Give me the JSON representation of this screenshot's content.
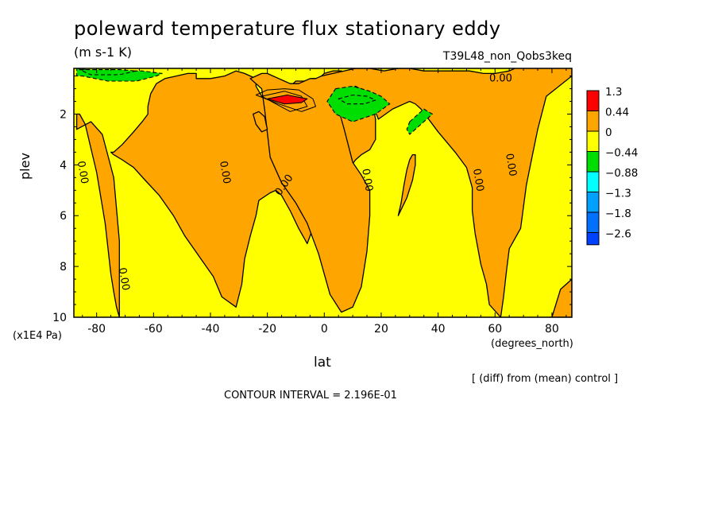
{
  "chart_data": {
    "type": "heatmap",
    "title": "poleward temperature flux stationary eddy",
    "units": "(m s-1 K)",
    "experiment": "T39L48_non_Qobs3keq",
    "xlabel": "lat",
    "ylabel": "plev",
    "x_unit": "(degrees_north)",
    "y_unit": "(x1E4 Pa)",
    "xlim": [
      -88,
      87
    ],
    "ylim": [
      10,
      0.2
    ],
    "xticks": [
      -80,
      -60,
      -40,
      -20,
      0,
      20,
      40,
      60,
      80
    ],
    "yticks": [
      2,
      4,
      6,
      8,
      10
    ],
    "levels": [
      "1.3",
      "0.44",
      "0",
      "−0.44",
      "−0.88",
      "−1.3",
      "−1.8",
      "−2.6"
    ],
    "level_colors": [
      "#ff0000",
      "#ffa500",
      "#ffff00",
      "#00dd00",
      "#00ffff",
      "#00a0ff",
      "#0070ff",
      "#0040ff"
    ],
    "contour_labels": [
      "0.00",
      "0.00",
      "0.00",
      "0.00",
      "0.00",
      "0.00",
      "0.00",
      "0.00"
    ],
    "regions": [
      {
        "sign": "positive",
        "x": [
          -86,
          -84,
          -80,
          -77,
          -75,
          -74,
          -73,
          -72,
          -72,
          -74,
          -78,
          -82,
          -87,
          -87
        ],
        "y": [
          2.0,
          2.4,
          4.3,
          6.3,
          8.3,
          9.0,
          9.6,
          10.0,
          7.0,
          4.5,
          2.8,
          2.3,
          2.6,
          2.0
        ]
      },
      {
        "sign": "positive",
        "x": [
          -74,
          -71,
          -67,
          -64,
          -62,
          -62,
          -61,
          -59,
          -56,
          -52,
          -48,
          -45,
          -45,
          -40,
          -35,
          -31,
          -28,
          -26,
          -24,
          -24,
          -22,
          -16,
          -11,
          -10,
          -7,
          -4,
          -2,
          0,
          3,
          6,
          9,
          11,
          13,
          15,
          17,
          18,
          18,
          16,
          13,
          11,
          9,
          6,
          3,
          0,
          -3,
          -6,
          -9,
          -12,
          -15,
          -17,
          -19,
          -23,
          -24,
          -26,
          -28,
          -29,
          -31,
          -36,
          -39,
          -44,
          -49,
          -53,
          -58,
          -63,
          -67,
          -71,
          -74,
          -75
        ],
        "y": [
          3.5,
          3.2,
          2.7,
          2.3,
          2.0,
          1.7,
          1.2,
          0.8,
          0.6,
          0.5,
          0.4,
          0.4,
          0.6,
          0.6,
          0.5,
          0.3,
          0.4,
          0.5,
          0.6,
          0.9,
          1.3,
          1.0,
          0.8,
          0.7,
          0.7,
          0.6,
          0.6,
          0.4,
          0.3,
          0.3,
          0.4,
          0.5,
          0.7,
          1.1,
          1.6,
          2.2,
          3.0,
          3.4,
          3.6,
          3.8,
          4.1,
          4.4,
          4.7,
          5.2,
          6.2,
          7.1,
          6.5,
          5.8,
          5.2,
          5.0,
          5.1,
          5.4,
          6.0,
          6.8,
          7.7,
          8.7,
          9.6,
          9.2,
          8.4,
          7.6,
          6.8,
          6.0,
          5.2,
          4.6,
          4.1,
          3.8,
          3.6,
          3.5
        ]
      },
      {
        "sign": "positive",
        "x": [
          -26,
          -22,
          -21,
          -19,
          -15,
          -10,
          -6,
          -2,
          2,
          6,
          10,
          13,
          15,
          16,
          16,
          13,
          10,
          7,
          5,
          7,
          11,
          14,
          17,
          19,
          24,
          28,
          30,
          32,
          34,
          36,
          40,
          46,
          50,
          52,
          52,
          53,
          55,
          57,
          58,
          62,
          63,
          64,
          65,
          69,
          71,
          73,
          75,
          78,
          87,
          87,
          69,
          65,
          60,
          56,
          51,
          47,
          44,
          43,
          42,
          41,
          35,
          30,
          26,
          21,
          16,
          11,
          7,
          3,
          -1,
          -3,
          -5,
          -7,
          -9,
          -12,
          -14,
          -16,
          -18,
          -20,
          -22,
          -24
        ],
        "y": [
          0.6,
          1.0,
          1.8,
          3.7,
          4.7,
          5.5,
          6.3,
          7.5,
          9.1,
          9.8,
          9.6,
          8.8,
          7.4,
          6.0,
          5.0,
          4.4,
          3.9,
          2.6,
          1.8,
          1.2,
          0.9,
          1.1,
          1.6,
          2.2,
          1.8,
          1.6,
          1.5,
          1.6,
          1.8,
          2.1,
          2.7,
          3.5,
          4.1,
          4.9,
          5.8,
          6.7,
          7.9,
          8.7,
          9.5,
          10.0,
          9.2,
          8.2,
          7.3,
          6.5,
          4.8,
          3.7,
          2.6,
          1.3,
          0.5,
          0.1,
          0.1,
          0.3,
          0.4,
          0.4,
          0.3,
          0.3,
          0.3,
          0.3,
          0.3,
          0.3,
          0.3,
          0.2,
          0.2,
          0.3,
          0.2,
          0.2,
          0.3,
          0.4,
          0.5,
          0.6,
          0.6,
          0.7,
          0.8,
          0.8,
          0.7,
          0.6,
          0.5,
          0.4,
          0.4,
          0.5
        ]
      },
      {
        "sign": "positive",
        "x": [
          26,
          29,
          31,
          32,
          32,
          31,
          30,
          29,
          28,
          27,
          26
        ],
        "y": [
          6.0,
          5.3,
          4.6,
          4.0,
          3.6,
          3.6,
          3.8,
          4.2,
          4.8,
          5.5,
          6.0
        ]
      },
      {
        "sign": "positive",
        "x": [
          -25,
          -23,
          -21,
          -20,
          -22,
          -24,
          -25
        ],
        "y": [
          2.0,
          1.9,
          2.1,
          2.6,
          2.7,
          2.4,
          2.0
        ]
      },
      {
        "sign": "positive",
        "x": [
          80,
          83,
          87,
          87,
          84,
          81,
          79,
          80
        ],
        "y": [
          10.0,
          8.9,
          8.5,
          10.0,
          10.0,
          10.0,
          10.0,
          10.0
        ]
      },
      {
        "sign": "positive",
        "x": [
          -22,
          -14,
          -8,
          -6,
          -12,
          -22
        ],
        "y": [
          1.3,
          1.1,
          1.3,
          1.7,
          1.9,
          1.3
        ]
      },
      {
        "sign": "positive",
        "x": [
          -24,
          -20,
          -14,
          -9,
          -4,
          -3,
          -8,
          -16,
          -24
        ],
        "y": [
          1.25,
          1.05,
          1.0,
          1.05,
          1.4,
          1.7,
          1.9,
          1.6,
          1.25
        ]
      },
      {
        "sign": "negative",
        "x": [
          -87,
          -80,
          -72,
          -64,
          -57,
          -59,
          -66,
          -76,
          -85,
          -87
        ],
        "y": [
          0.2,
          0.3,
          0.3,
          0.3,
          0.4,
          0.5,
          0.7,
          0.7,
          0.5,
          0.5
        ]
      },
      {
        "sign": "negative",
        "x": [
          4,
          10,
          16,
          20,
          23,
          18,
          10,
          4,
          1,
          4
        ],
        "y": [
          1.0,
          0.9,
          1.1,
          1.3,
          1.6,
          2.0,
          2.3,
          2.0,
          1.5,
          1.0
        ]
      },
      {
        "sign": "negative",
        "x": [
          30,
          35,
          38,
          33,
          30,
          29,
          30
        ],
        "y": [
          2.3,
          1.8,
          2.0,
          2.5,
          2.8,
          2.6,
          2.3
        ]
      },
      {
        "sign": "negative",
        "x": [
          5,
          10,
          15,
          18,
          14,
          8,
          5
        ],
        "y": [
          1.4,
          1.25,
          1.3,
          1.45,
          1.6,
          1.6,
          1.4
        ]
      },
      {
        "sign": "negative",
        "x": [
          -86,
          -80,
          -72,
          -66,
          -72,
          -82,
          -86
        ],
        "y": [
          0.25,
          0.25,
          0.25,
          0.3,
          0.45,
          0.45,
          0.25
        ]
      },
      {
        "sign": "positive_max",
        "x": [
          -20,
          -13,
          -6,
          -8,
          -14,
          -20
        ],
        "y": [
          1.4,
          1.25,
          1.4,
          1.55,
          1.6,
          1.4
        ]
      }
    ]
  },
  "footer": {
    "diff": "[ (diff) from (mean) control ]",
    "contour_interval": "CONTOUR INTERVAL = 2.196E-01"
  }
}
